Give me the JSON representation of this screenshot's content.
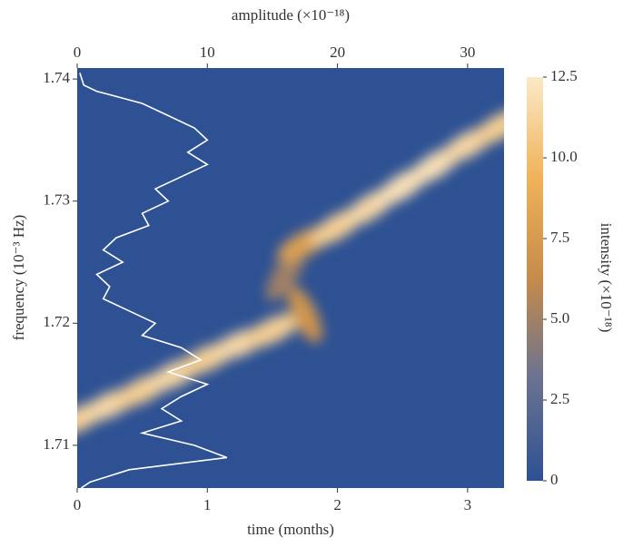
{
  "chart_data": {
    "type": "heatmap",
    "xlabel": "time (months)",
    "ylabel": "frequency (10⁻³ Hz)",
    "x2label": "amplitude (×10⁻¹⁸)",
    "colorbar_label": "intensity (×10⁻¹⁸)",
    "xlim": [
      0,
      3.28
    ],
    "xticks": [
      0,
      1,
      2,
      3
    ],
    "x2lim": [
      0,
      32.8
    ],
    "x2ticks": [
      0,
      10,
      20,
      30
    ],
    "ylim": [
      1.7065,
      1.7409
    ],
    "yticks": [
      1.71,
      1.72,
      1.73,
      1.74
    ],
    "clim": [
      0,
      12.5
    ],
    "cticks": [
      0,
      2.5,
      {
        "value": 5,
        "label": "5.0"
      },
      7.5,
      {
        "value": 10,
        "label": "10.0"
      },
      12.5
    ],
    "colormap": [
      "#2d5193",
      "#6a7291",
      "#c58b4a",
      "#f0b25a",
      "#fbe9c8"
    ],
    "ridge": {
      "time": [
        0,
        0.25,
        0.5,
        0.75,
        1,
        1.25,
        1.5,
        1.75,
        1.6,
        1.75,
        2,
        2.25,
        2.5,
        2.75,
        3,
        3.25
      ],
      "frequency": [
        1.7121,
        1.7133,
        1.7145,
        1.7158,
        1.7171,
        1.7183,
        1.7194,
        1.7207,
        1.724,
        1.7265,
        1.7279,
        1.7295,
        1.7312,
        1.7329,
        1.7346,
        1.7361
      ],
      "intensity": [
        11,
        11.5,
        11,
        11.5,
        11,
        11.5,
        11,
        7,
        5,
        8,
        11,
        11.5,
        12,
        12,
        11.5,
        11
      ]
    },
    "amplitude_trace": {
      "color": "#ffffff",
      "frequency": [
        1.7405,
        1.7395,
        1.739,
        1.738,
        1.737,
        1.736,
        1.735,
        1.734,
        1.733,
        1.732,
        1.731,
        1.73,
        1.729,
        1.728,
        1.727,
        1.726,
        1.725,
        1.724,
        1.723,
        1.722,
        1.721,
        1.72,
        1.719,
        1.718,
        1.717,
        1.716,
        1.715,
        1.714,
        1.713,
        1.712,
        1.711,
        1.71,
        1.709,
        1.708,
        1.707,
        1.7065
      ],
      "amplitude": [
        0.2,
        0.5,
        1.5,
        5,
        7,
        9,
        10,
        8.5,
        10,
        8,
        6,
        7,
        5,
        5.5,
        3,
        2,
        3.5,
        1.5,
        2.5,
        2,
        4,
        6,
        5,
        8,
        9.5,
        7,
        10,
        8,
        6.5,
        8,
        5,
        9,
        11.5,
        4,
        1,
        0.3
      ]
    }
  }
}
